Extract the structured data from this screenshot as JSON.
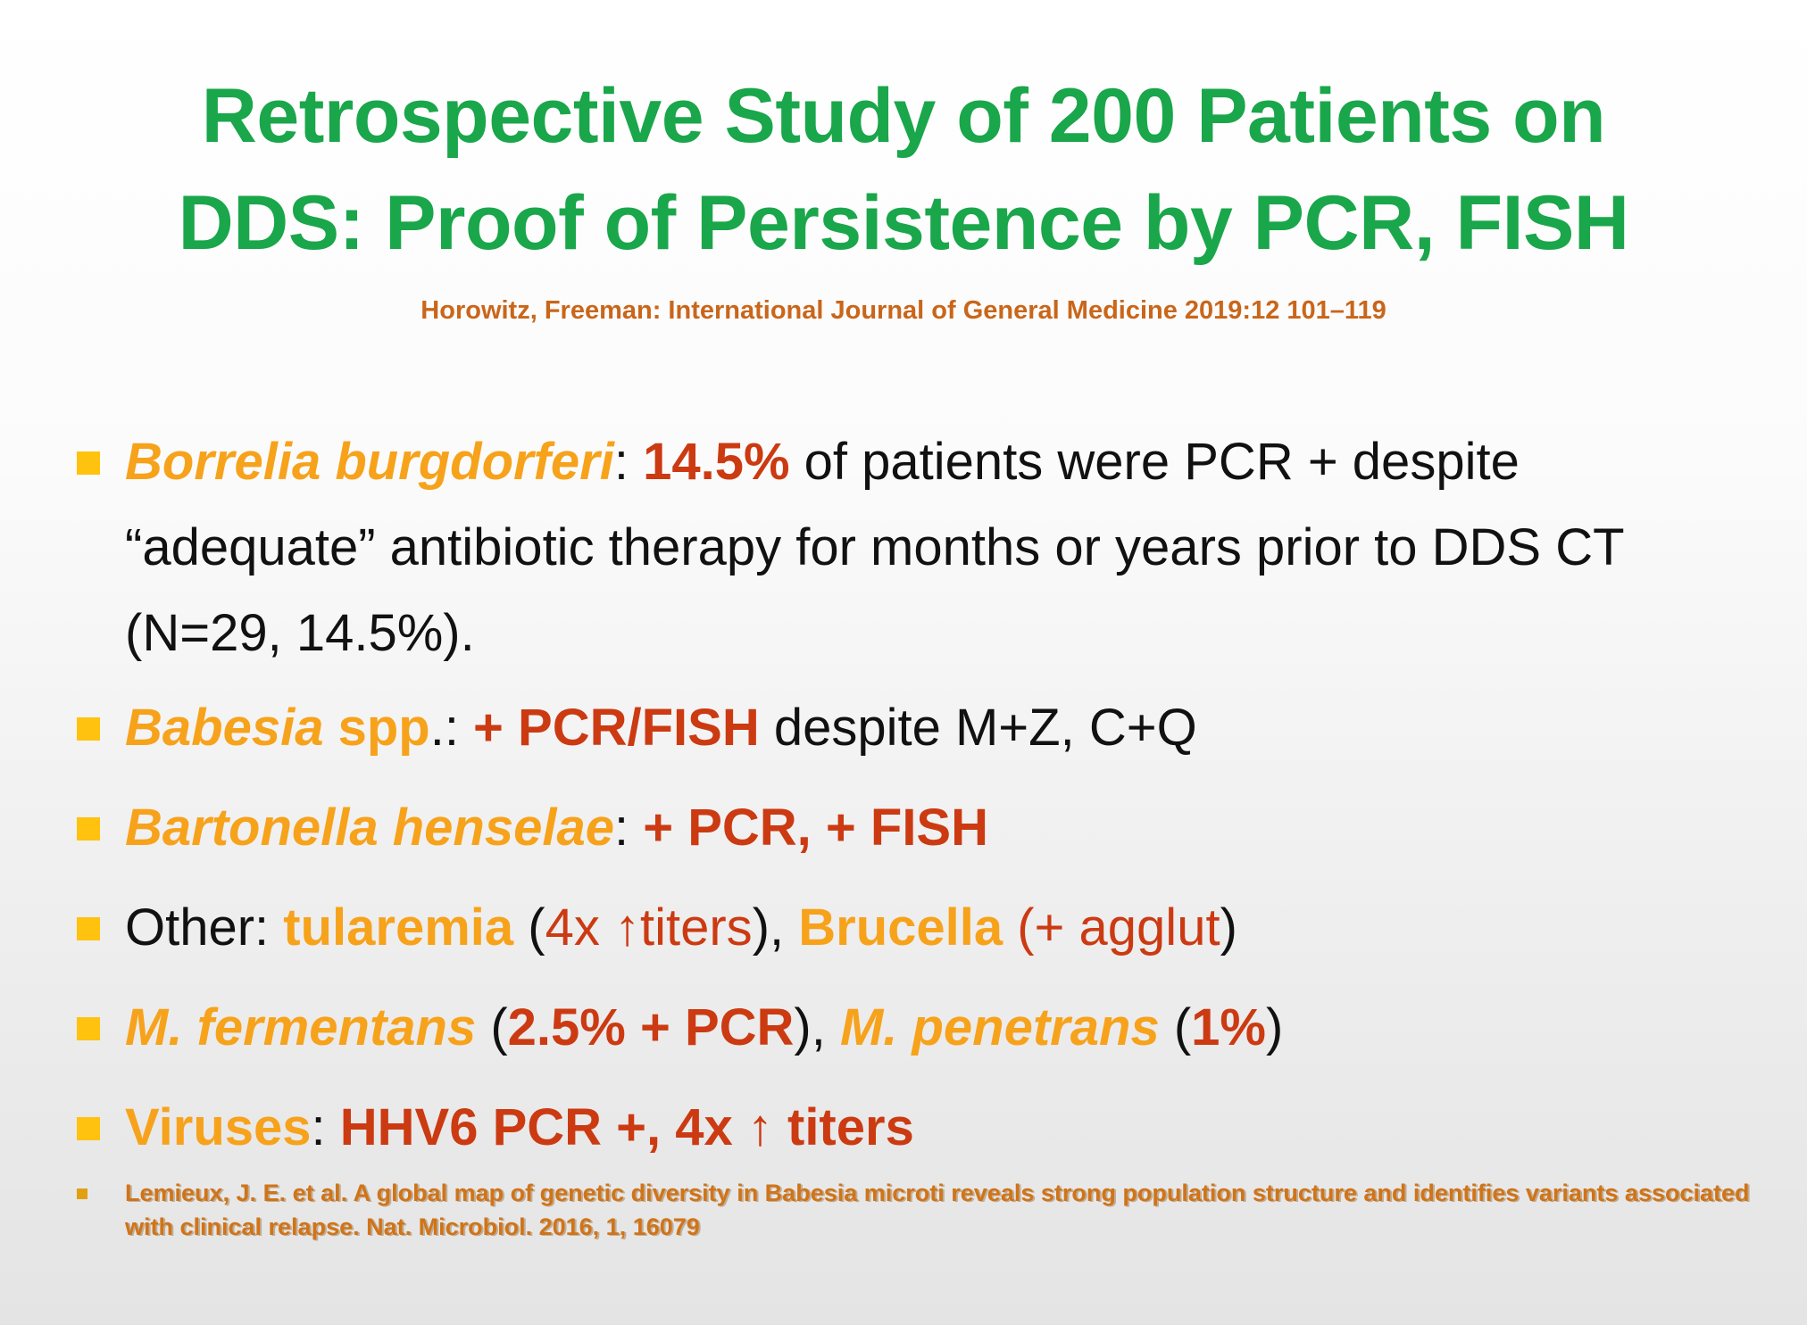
{
  "title_line1": "Retrospective Study of 200 Patients on",
  "title_line2": "DDS: Proof of Persistence by PCR, FISH",
  "citation": "Horowitz, Freeman: International Journal of General Medicine 2019:12 101–119",
  "bullets": {
    "b1": {
      "organism": "Borrelia burgdorferi",
      "colon": ": ",
      "percent": "14.5%",
      "text": " of patients were PCR + despite “adequate” antibiotic therapy for months or years prior to DDS CT (N=29, 14.5%)."
    },
    "b2": {
      "organism": "Babesia",
      "spp": " spp",
      "colon": ".: ",
      "result": "+ PCR/FISH",
      "text": " despite M+Z, C+Q"
    },
    "b3": {
      "organism": "Bartonella henselae",
      "colon": ": ",
      "result": "+ PCR, + FISH"
    },
    "b4": {
      "label": "Other: ",
      "tularemia": "tularemia",
      "open": " (",
      "titers": "4x ↑titers",
      "close": "), ",
      "brucella": "Brucella",
      "agglut": " (+ agglut",
      "end": ")"
    },
    "b5": {
      "fermentans": "M. fermentans",
      "open": " (",
      "fermentans_result": "2.5% + PCR",
      "close": "), ",
      "penetrans": "M. penetrans",
      "open2": " (",
      "penetrans_result": "1%",
      "end": ")"
    },
    "b6": {
      "label": "Viruses",
      "colon": ": ",
      "result": "HHV6 PCR +, 4x ↑ titers"
    }
  },
  "reference": "Lemieux, J. E. et al. A global map of genetic diversity in Babesia microti reveals strong population structure and identifies variants associated with clinical relapse. Nat. Microbiol. 2016, 1, 16079",
  "colors": {
    "title": "#1aa64a",
    "citation": "#c9661a",
    "organism": "#f7a21b",
    "result": "#cc3a12",
    "bullet_marker": "#ffc20e"
  }
}
